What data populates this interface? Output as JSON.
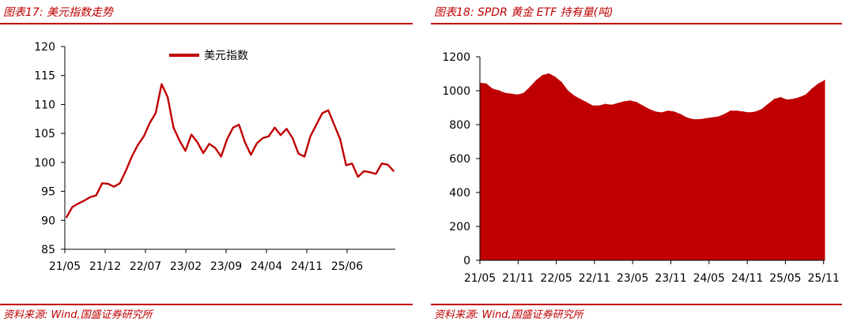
{
  "panels": {
    "left": {
      "title": "图表17:  美元指数走势",
      "source": "资料来源:  Wind,国盛证券研究所"
    },
    "right": {
      "title": "图表18:  SPDR 黄金 ETF 持有量(吨)",
      "source": "资料来源:  Wind,国盛证券研究所"
    }
  },
  "colors": {
    "accent": "#c00000",
    "series": "#c00000",
    "axis": "#000000"
  },
  "chart_data": [
    {
      "type": "line",
      "title": "",
      "xlabel": "",
      "ylabel": "",
      "ylim": [
        85,
        120
      ],
      "yticks": [
        85,
        90,
        95,
        100,
        105,
        110,
        115,
        120
      ],
      "xtick_labels": [
        "21/05",
        "21/12",
        "22/07",
        "23/02",
        "23/09",
        "24/04",
        "24/11",
        "25/06"
      ],
      "legend": {
        "placement": "top-center",
        "entries": [
          "美元指数"
        ]
      },
      "grid": false,
      "series": [
        {
          "name": "美元指数",
          "x": [
            "21/05",
            "21/06",
            "21/07",
            "21/08",
            "21/09",
            "21/10",
            "21/11",
            "21/12",
            "22/01",
            "22/02",
            "22/03",
            "22/04",
            "22/05",
            "22/06",
            "22/07",
            "22/08",
            "22/09",
            "22/10",
            "22/11",
            "22/12",
            "23/01",
            "23/02",
            "23/03",
            "23/04",
            "23/05",
            "23/06",
            "23/07",
            "23/08",
            "23/09",
            "23/10",
            "23/11",
            "23/12",
            "24/01",
            "24/02",
            "24/03",
            "24/04",
            "24/05",
            "24/06",
            "24/07",
            "24/08",
            "24/09",
            "24/10",
            "24/11",
            "24/12",
            "25/01",
            "25/02",
            "25/03",
            "25/04",
            "25/05",
            "25/06",
            "25/07",
            "25/08",
            "25/09",
            "25/10",
            "25/11",
            "25/12"
          ],
          "values": [
            90.5,
            92.3,
            92.9,
            93.4,
            94.0,
            94.3,
            96.4,
            96.3,
            95.8,
            96.4,
            98.6,
            101.0,
            103.0,
            104.5,
            106.8,
            108.5,
            113.5,
            111.3,
            106.0,
            103.8,
            102.0,
            104.8,
            103.5,
            101.6,
            103.2,
            102.5,
            101.0,
            104.0,
            106.0,
            106.5,
            103.5,
            101.3,
            103.3,
            104.2,
            104.5,
            106.0,
            104.7,
            105.8,
            104.2,
            101.5,
            101.0,
            104.5,
            106.5,
            108.5,
            109.0,
            106.5,
            104.0,
            99.5,
            99.8,
            97.5,
            98.5,
            98.3,
            98.0,
            99.8,
            99.6,
            98.5
          ]
        }
      ]
    },
    {
      "type": "area",
      "title": "",
      "xlabel": "",
      "ylabel": "",
      "ylim": [
        0,
        1200
      ],
      "yticks": [
        0,
        200,
        400,
        600,
        800,
        1000,
        1200
      ],
      "xtick_labels": [
        "21/05",
        "21/11",
        "22/05",
        "22/11",
        "23/05",
        "23/11",
        "24/05",
        "24/11",
        "25/05",
        "25/11"
      ],
      "legend": null,
      "grid": false,
      "series": [
        {
          "name": "",
          "x": [
            "21/05",
            "21/06",
            "21/07",
            "21/08",
            "21/09",
            "21/10",
            "21/11",
            "21/12",
            "22/01",
            "22/02",
            "22/03",
            "22/04",
            "22/05",
            "22/06",
            "22/07",
            "22/08",
            "22/09",
            "22/10",
            "22/11",
            "22/12",
            "23/01",
            "23/02",
            "23/03",
            "23/04",
            "23/05",
            "23/06",
            "23/07",
            "23/08",
            "23/09",
            "23/10",
            "23/11",
            "23/12",
            "24/01",
            "24/02",
            "24/03",
            "24/04",
            "24/05",
            "24/06",
            "24/07",
            "24/08",
            "24/09",
            "24/10",
            "24/11",
            "24/12",
            "25/01",
            "25/02",
            "25/03",
            "25/04",
            "25/05",
            "25/06",
            "25/07",
            "25/08",
            "25/09",
            "25/10",
            "25/11",
            "25/12"
          ],
          "values": [
            1045,
            1040,
            1010,
            1000,
            985,
            980,
            975,
            985,
            1020,
            1060,
            1090,
            1100,
            1080,
            1050,
            1000,
            970,
            950,
            930,
            910,
            910,
            920,
            915,
            925,
            935,
            940,
            930,
            910,
            890,
            875,
            870,
            880,
            875,
            860,
            840,
            830,
            830,
            835,
            840,
            845,
            860,
            880,
            880,
            875,
            870,
            875,
            890,
            920,
            950,
            960,
            945,
            950,
            960,
            975,
            1010,
            1040,
            1060
          ]
        }
      ]
    }
  ]
}
